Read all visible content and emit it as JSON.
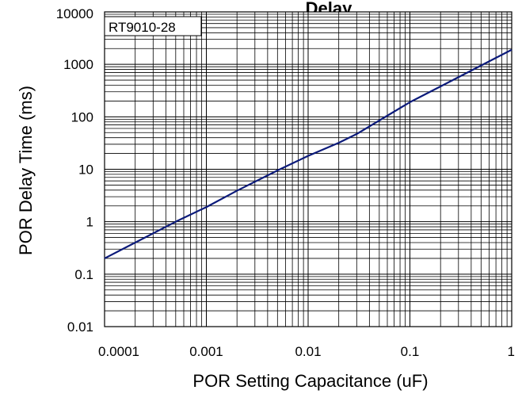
{
  "chart_data": {
    "type": "line",
    "title": "Delay",
    "xlabel": "POR Setting Capacitance (uF)",
    "ylabel": "POR Delay Time (ms)",
    "xscale": "log",
    "yscale": "log",
    "xlim": [
      0.0001,
      1
    ],
    "ylim": [
      0.01,
      10000
    ],
    "x_ticks": [
      "0.0001",
      "0.001",
      "0.01",
      "0.1",
      "1"
    ],
    "y_ticks": [
      "0.01",
      "0.1",
      "1",
      "10",
      "100",
      "1000",
      "10000"
    ],
    "grid": true,
    "annotation": "RT9010-28",
    "line_color": "#0b1a7a",
    "series": [
      {
        "x": [
          0.0001,
          0.0002,
          0.0005,
          0.001,
          0.002,
          0.005,
          0.01,
          0.02,
          0.03,
          0.05,
          0.1,
          0.2,
          0.5,
          1
        ],
        "y": [
          0.2,
          0.4,
          1.0,
          1.9,
          3.9,
          9.5,
          18,
          32,
          47,
          85,
          190,
          380,
          950,
          1900
        ]
      }
    ]
  }
}
